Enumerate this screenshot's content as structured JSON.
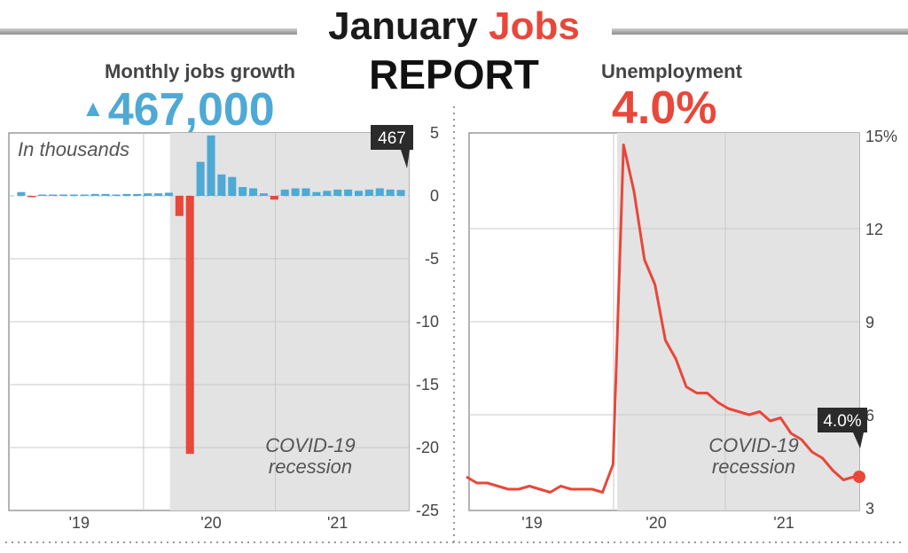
{
  "header": {
    "title_part1": "January",
    "title_part2": "Jobs",
    "title_line2": "REPORT"
  },
  "jobs_panel": {
    "label": "Monthly jobs growth",
    "headline_arrow": "▲",
    "headline_value": "467,000",
    "units_note": "In thousands",
    "recession_label_line1": "COVID-19",
    "recession_label_line2": "recession",
    "last_value_callout": "467"
  },
  "unemployment_panel": {
    "label": "Unemployment",
    "headline_value": "4.0%",
    "recession_label_line1": "COVID-19",
    "recession_label_line2": "recession",
    "last_value_callout": "4.0%"
  },
  "colors": {
    "positive": "#4ea9d5",
    "negative": "#e8473a",
    "recession_shade": "#e3e3e3",
    "grid": "#c8c8c8",
    "text": "#444444"
  },
  "chart_data": [
    {
      "type": "bar",
      "title": "Monthly jobs growth",
      "ylabel": "In thousands",
      "ylim": [
        -25,
        5
      ],
      "yticks": [
        "5",
        "0",
        "-5",
        "-10",
        "-15",
        "-20",
        "-25"
      ],
      "xticks": [
        "'19",
        "'20",
        "'21"
      ],
      "recession_shaded": true,
      "grid": true,
      "months": 37,
      "values": [
        0.3,
        -0.05,
        0.1,
        0.1,
        0.1,
        0.1,
        0.1,
        0.15,
        0.15,
        0.1,
        0.15,
        0.15,
        0.2,
        0.2,
        0.25,
        -1.6,
        -20.5,
        2.7,
        4.8,
        1.7,
        1.5,
        0.7,
        0.6,
        0.2,
        -0.3,
        0.5,
        0.6,
        0.6,
        0.3,
        0.4,
        0.5,
        0.5,
        0.4,
        0.5,
        0.6,
        0.5,
        0.47
      ]
    },
    {
      "type": "line",
      "title": "Unemployment",
      "ylim": [
        3,
        15
      ],
      "yticks": [
        "15%",
        "12",
        "9",
        "6",
        "3"
      ],
      "xticks": [
        "'19",
        "'20",
        "'21"
      ],
      "recession_shaded": true,
      "grid": true,
      "values": [
        4.0,
        3.8,
        3.8,
        3.7,
        3.6,
        3.6,
        3.7,
        3.6,
        3.5,
        3.7,
        3.6,
        3.6,
        3.6,
        3.5,
        4.4,
        14.7,
        13.2,
        11.0,
        10.2,
        8.4,
        7.8,
        6.9,
        6.7,
        6.7,
        6.4,
        6.2,
        6.1,
        6.0,
        6.1,
        5.8,
        5.9,
        5.4,
        5.2,
        4.8,
        4.6,
        4.2,
        3.9,
        4.0
      ]
    }
  ]
}
